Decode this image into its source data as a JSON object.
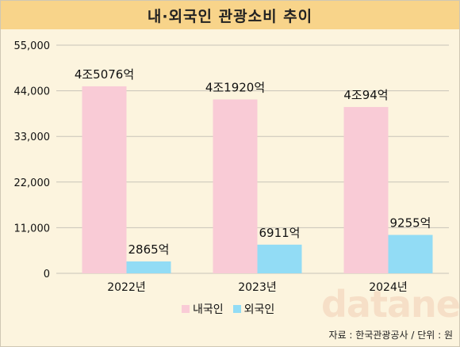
{
  "title": "내·외국인 관광소비 추이",
  "source": "자료 : 한국관광공사 / 단위 : 원",
  "watermark": "datanews",
  "colors": {
    "background": "#fcf4de",
    "title_bar": "#f8d48a",
    "domestic": "#f9cbd6",
    "foreign": "#92dcf5",
    "grid": "#c8c3b8"
  },
  "legend": {
    "domestic_label": "내국인",
    "foreign_label": "외국인"
  },
  "chart_data": {
    "type": "bar",
    "title": "내·외국인 관광소비 추이",
    "categories": [
      "2022년",
      "2023년",
      "2024년"
    ],
    "series": [
      {
        "name": "내국인",
        "values": [
          45076,
          41920,
          40094
        ],
        "labels": [
          "4조5076억",
          "4조1920억",
          "4조94억"
        ],
        "color": "#f9cbd6"
      },
      {
        "name": "외국인",
        "values": [
          2865,
          6911,
          9255
        ],
        "labels": [
          "2865억",
          "6911억",
          "9255억"
        ],
        "color": "#92dcf5"
      }
    ],
    "ylim": [
      0,
      55000
    ],
    "yticks": [
      0,
      11000,
      22000,
      33000,
      44000,
      55000
    ],
    "ytick_labels": [
      "0",
      "11,000",
      "22,000",
      "33,000",
      "44,000",
      "55,000"
    ],
    "grid": true,
    "legend_position": "bottom"
  }
}
